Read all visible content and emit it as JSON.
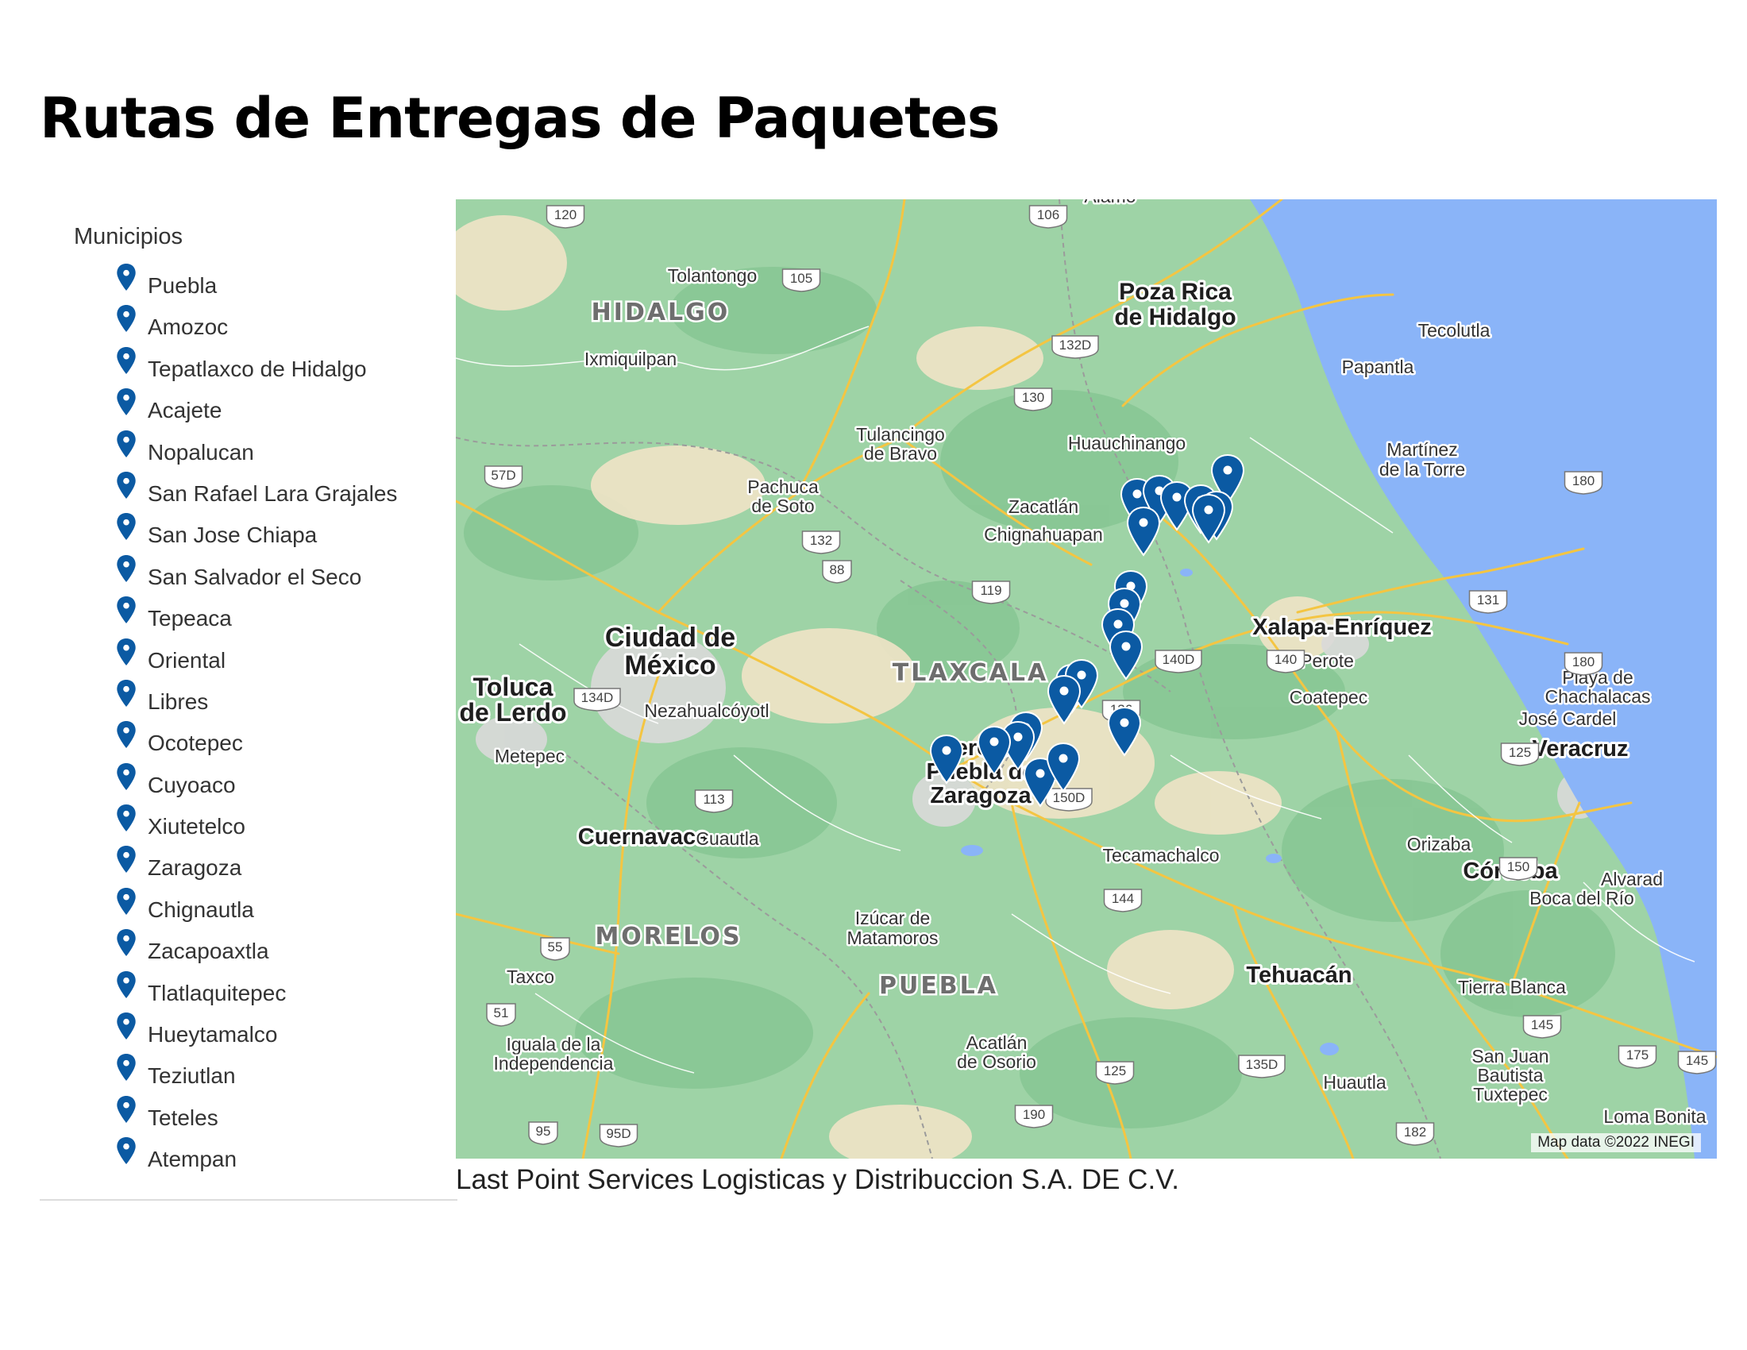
{
  "title": "Rutas de Entregas de Paquetes",
  "sidebar": {
    "heading": "Municipios",
    "items": [
      {
        "label": "Puebla"
      },
      {
        "label": "Amozoc"
      },
      {
        "label": "Tepatlaxco de Hidalgo"
      },
      {
        "label": "Acajete"
      },
      {
        "label": "Nopalucan"
      },
      {
        "label": "San Rafael Lara Grajales"
      },
      {
        "label": "San Jose Chiapa"
      },
      {
        "label": "San Salvador  el Seco"
      },
      {
        "label": "Tepeaca"
      },
      {
        "label": "Oriental"
      },
      {
        "label": "Libres"
      },
      {
        "label": "Ocotepec"
      },
      {
        "label": "Cuyoaco"
      },
      {
        "label": "Xiutetelco"
      },
      {
        "label": "Zaragoza"
      },
      {
        "label": "Chignautla"
      },
      {
        "label": "Zacapoaxtla"
      },
      {
        "label": "Tlatlaquitepec"
      },
      {
        "label": "Hueytamalco"
      },
      {
        "label": "Teziutlan"
      },
      {
        "label": "Teteles"
      },
      {
        "label": "Atempan"
      }
    ]
  },
  "map": {
    "attribution": "Map data ©2022 INEGI",
    "state_labels": [
      "HIDALGO",
      "TLAXCALA",
      "MORELOS",
      "PUEBLA"
    ],
    "major_cities": [
      "Poza Rica",
      "de Hidalgo",
      "Ciudad de",
      "México",
      "Toluca",
      "de Lerdo",
      "Heroica",
      "Puebla de",
      "Zaragoza",
      "Cuernavaca",
      "Xalapa-Enríquez",
      "Veracruz",
      "Córdoba",
      "Tehuacán"
    ],
    "towns": [
      "Tolantongo",
      "Ixmiquilpan",
      "Tecolutla",
      "Papantla",
      "Tulancingo",
      "de Bravo",
      "Huauchinango",
      "Martínez",
      "de la Torre",
      "Pachuca",
      "de Soto",
      "Zacatlán",
      "Chignahuapan",
      "Perote",
      "Coatepec",
      "Playa de",
      "Chachalacas",
      "José Cardel",
      "Nezahualcóyotl",
      "Metepec",
      "Boca del Río",
      "Cuautla",
      "Orizaba",
      "Tecamachalco",
      "Alvarad",
      "Izúcar de",
      "Matamoros",
      "Taxco",
      "Tierra Blanca",
      "Iguala de la",
      "Independencia",
      "Acatlán",
      "de Osorio",
      "San Juan",
      "Bautista",
      "Tuxtepec",
      "Huautla",
      "Loma Bonita",
      "Álamo"
    ],
    "highway_shields": [
      "120",
      "106",
      "105",
      "132D",
      "130",
      "57D",
      "180",
      "132",
      "88",
      "119",
      "131",
      "140D",
      "140",
      "180",
      "134D",
      "136",
      "150D",
      "125",
      "113",
      "150",
      "144",
      "55",
      "145",
      "51",
      "175",
      "145",
      "135D",
      "125",
      "190",
      "95",
      "95D",
      "182"
    ],
    "marker_color": "#0b5aa3",
    "marker_count": 22
  },
  "footer": "Last Point Services Logisticas y Distribuccion  S.A. DE C.V."
}
